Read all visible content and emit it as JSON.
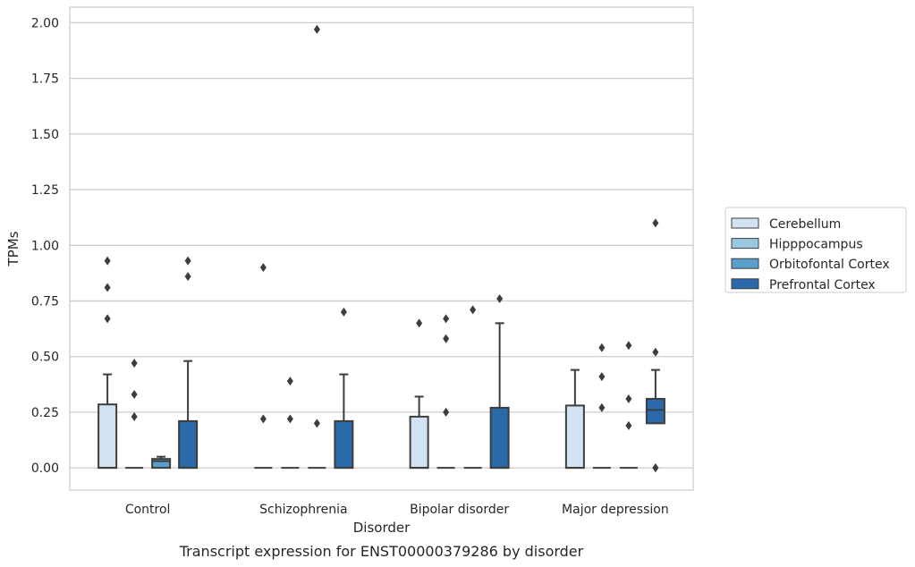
{
  "caption": "Transcript expression for ENST00000379286 by disorder",
  "chart_data": {
    "type": "box",
    "xlabel": "Disorder",
    "ylabel": "TPMs",
    "ylim": [
      -0.1,
      2.07
    ],
    "yticks": [
      "0.00",
      "0.25",
      "0.50",
      "0.75",
      "1.00",
      "1.25",
      "1.50",
      "1.75",
      "2.00"
    ],
    "grid": "horizontal",
    "legend_position": "right",
    "categories": [
      "Control",
      "Schizophrenia",
      "Bipolar disorder",
      "Major depression"
    ],
    "series": [
      {
        "name": "Cerebellum",
        "color": "#d1e3f3",
        "boxes": [
          {
            "q1": 0,
            "median": 0,
            "q3": 0.285,
            "whisker_low": 0,
            "whisker_high": 0.42,
            "outliers": [
              0.67,
              0.81,
              0.93
            ]
          },
          {
            "q1": 0,
            "median": 0,
            "q3": 0,
            "whisker_low": 0,
            "whisker_high": 0,
            "outliers": [
              0.22,
              0.9
            ]
          },
          {
            "q1": 0,
            "median": 0,
            "q3": 0.23,
            "whisker_low": 0,
            "whisker_high": 0.32,
            "outliers": [
              0.65
            ]
          },
          {
            "q1": 0,
            "median": 0,
            "q3": 0.28,
            "whisker_low": 0,
            "whisker_high": 0.44,
            "outliers": []
          }
        ]
      },
      {
        "name": "Hipppocampus",
        "color": "#9ac8e0",
        "boxes": [
          {
            "q1": 0,
            "median": 0,
            "q3": 0,
            "whisker_low": 0,
            "whisker_high": 0,
            "outliers": [
              0.23,
              0.33,
              0.47
            ]
          },
          {
            "q1": 0,
            "median": 0,
            "q3": 0,
            "whisker_low": 0,
            "whisker_high": 0,
            "outliers": [
              0.22,
              0.39
            ]
          },
          {
            "q1": 0,
            "median": 0,
            "q3": 0,
            "whisker_low": 0,
            "whisker_high": 0,
            "outliers": [
              0.25,
              0.58,
              0.67
            ]
          },
          {
            "q1": 0,
            "median": 0,
            "q3": 0,
            "whisker_low": 0,
            "whisker_high": 0,
            "outliers": [
              0.27,
              0.41,
              0.54
            ]
          }
        ]
      },
      {
        "name": "Orbitofontal Cortex",
        "color": "#5a9ecc",
        "boxes": [
          {
            "q1": 0,
            "median": 0.03,
            "q3": 0.04,
            "whisker_low": 0,
            "whisker_high": 0.05,
            "outliers": []
          },
          {
            "q1": 0,
            "median": 0,
            "q3": 0,
            "whisker_low": 0,
            "whisker_high": 0,
            "outliers": [
              0.2,
              1.97
            ]
          },
          {
            "q1": 0,
            "median": 0,
            "q3": 0,
            "whisker_low": 0,
            "whisker_high": 0,
            "outliers": [
              0.71
            ]
          },
          {
            "q1": 0,
            "median": 0,
            "q3": 0,
            "whisker_low": 0,
            "whisker_high": 0,
            "outliers": [
              0.19,
              0.31,
              0.55
            ]
          }
        ]
      },
      {
        "name": "Prefrontal Cortex",
        "color": "#2a6aaa",
        "boxes": [
          {
            "q1": 0,
            "median": 0,
            "q3": 0.21,
            "whisker_low": 0,
            "whisker_high": 0.48,
            "outliers": [
              0.86,
              0.93
            ]
          },
          {
            "q1": 0,
            "median": 0,
            "q3": 0.21,
            "whisker_low": 0,
            "whisker_high": 0.42,
            "outliers": [
              0.7
            ]
          },
          {
            "q1": 0,
            "median": 0,
            "q3": 0.27,
            "whisker_low": 0,
            "whisker_high": 0.65,
            "outliers": [
              0.76
            ]
          },
          {
            "q1": 0.2,
            "median": 0.26,
            "q3": 0.31,
            "whisker_low": 0.2,
            "whisker_high": 0.44,
            "outliers": [
              0,
              0,
              0.52,
              1.1
            ]
          }
        ]
      }
    ]
  }
}
